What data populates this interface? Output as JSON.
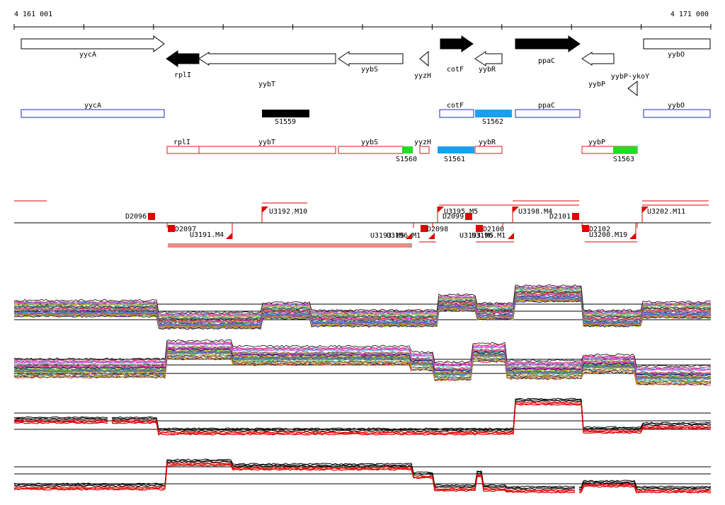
{
  "ruler": {
    "start_label": "4 161 001",
    "end_label": "4 171 000"
  },
  "colors": {
    "annotation_outline": "#1a2fb5",
    "transcript_outline": "#d81b1b",
    "segment_black": "#000000",
    "segment_blue": "#1aa0f0",
    "segment_green": "#22dd22",
    "marker_red": "#e00000",
    "track_line": "#000000"
  },
  "genes": [
    {
      "name": "yycA",
      "strand": "+",
      "filled": false
    },
    {
      "name": "rplI",
      "strand": "-",
      "filled": true
    },
    {
      "name": "yybT",
      "strand": "-",
      "filled": false
    },
    {
      "name": "yybS",
      "strand": "-",
      "filled": false
    },
    {
      "name": "yyzH",
      "strand": "-",
      "filled": false
    },
    {
      "name": "cotF",
      "strand": "+",
      "filled": true
    },
    {
      "name": "yybR",
      "strand": "-",
      "filled": false
    },
    {
      "name": "ppaC",
      "strand": "+",
      "filled": true
    },
    {
      "name": "yybP",
      "strand": "-",
      "filled": false
    },
    {
      "name": "yybP-ykoY",
      "strand": "-",
      "filled": false
    },
    {
      "name": "yybO",
      "strand": "+",
      "filled": false
    }
  ],
  "annotation_boxes": [
    "yycA",
    "cotF",
    "ppaC",
    "yybO"
  ],
  "segments_row1": [
    {
      "name": "S1559",
      "color": "black"
    },
    {
      "name": "S1562",
      "color": "blue"
    }
  ],
  "transcript_boxes": [
    "rplI",
    "yybT",
    "yybS",
    "yyzH",
    "yybR",
    "yybP"
  ],
  "segments_row2": [
    {
      "name": "S1560",
      "color": "green"
    },
    {
      "name": "S1561",
      "color": "blue"
    },
    {
      "name": "S1563",
      "color": "green"
    }
  ],
  "upshift_labels": [
    "U3192.M10",
    "U3195.M5",
    "U3198.M4",
    "U3202.M11",
    "U3191.M4",
    "U3200.M19"
  ],
  "downshift_labels": [
    "D2096",
    "D2097",
    "D2098",
    "D2099",
    "D2100",
    "D2101",
    "D2102"
  ],
  "overlap_labels": [
    "U3193.M5",
    "U3196.M1"
  ],
  "expression_panels": [
    {
      "name": "panel-1",
      "style": "multicolor"
    },
    {
      "name": "panel-2",
      "style": "multicolor"
    },
    {
      "name": "panel-3",
      "style": "red-black"
    },
    {
      "name": "panel-4",
      "style": "red-black"
    }
  ]
}
